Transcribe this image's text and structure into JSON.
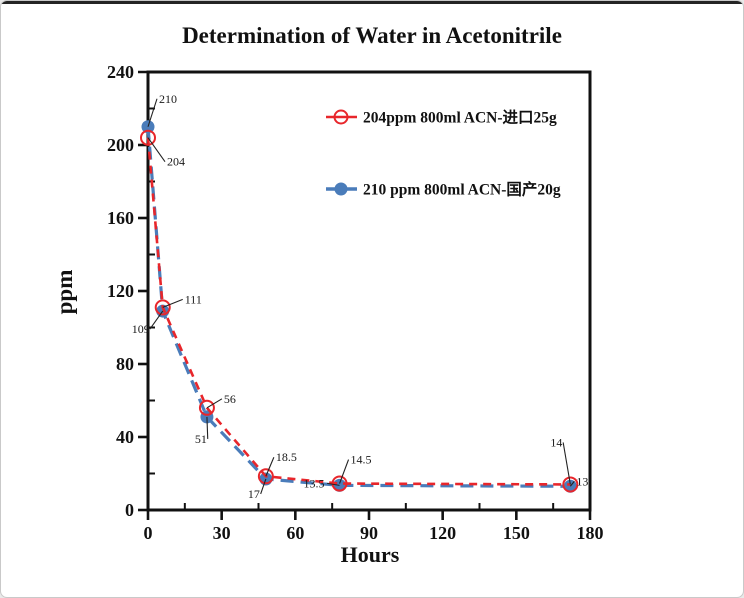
{
  "page": {
    "background": "#ffffff",
    "border_color": "#c9c9c9",
    "top_line_color": "#242424"
  },
  "chart_data": {
    "type": "line",
    "title": "Determination of Water in Acetonitrile",
    "xlabel": "Hours",
    "ylabel": "ppm",
    "xlim": [
      0,
      180
    ],
    "ylim": [
      0,
      240
    ],
    "x_ticks_major": [
      0,
      30,
      60,
      90,
      120,
      150,
      180
    ],
    "x_ticks_minor": [
      15,
      45,
      75,
      105,
      135,
      165
    ],
    "y_ticks_major": [
      0,
      40,
      80,
      120,
      160,
      200,
      240
    ],
    "y_ticks_minor": [
      20,
      60,
      100,
      140,
      180,
      220
    ],
    "grid": false,
    "legend_position": "upper-right-inside",
    "axis_color": "#111111",
    "series": [
      {
        "name": "204ppm  800ml ACN-进口25g",
        "color": "#e8262b",
        "marker": "open-circle",
        "line_style": "dashed",
        "dash": "8 6",
        "line_width": 2.6,
        "points": [
          {
            "x": 0,
            "y": 204,
            "label": "204",
            "dx": 19,
            "dy": 28
          },
          {
            "x": 6,
            "y": 111,
            "label": "111",
            "dx": 22,
            "dy": -4
          },
          {
            "x": 24,
            "y": 56,
            "label": "56",
            "dx": 17,
            "dy": -5
          },
          {
            "x": 48,
            "y": 18.5,
            "label": "18.5",
            "dx": 10,
            "dy": -15
          },
          {
            "x": 78,
            "y": 14.5,
            "label": "14.5",
            "dx": 11,
            "dy": -20
          },
          {
            "x": 172,
            "y": 14,
            "label": "14",
            "dx": -20,
            "dy": -38
          }
        ]
      },
      {
        "name": "210 ppm 800ml ACN-国产20g",
        "color": "#4a7cba",
        "marker": "filled-circle",
        "line_style": "dashed",
        "dash": "13 7",
        "line_width": 3.2,
        "points": [
          {
            "x": 0,
            "y": 210,
            "label": "210",
            "dx": 11,
            "dy": -24
          },
          {
            "x": 6,
            "y": 109,
            "label": "109",
            "dx": -31,
            "dy": 22
          },
          {
            "x": 24,
            "y": 51,
            "label": "51",
            "dx": -12,
            "dy": 26
          },
          {
            "x": 48,
            "y": 17,
            "label": "17",
            "dx": -18,
            "dy": 19
          },
          {
            "x": 78,
            "y": 13.5,
            "label": "13.5",
            "dx": -36,
            "dy": 2
          },
          {
            "x": 172,
            "y": 13,
            "label": "13",
            "dx": 6,
            "dy": -1
          }
        ]
      }
    ]
  }
}
